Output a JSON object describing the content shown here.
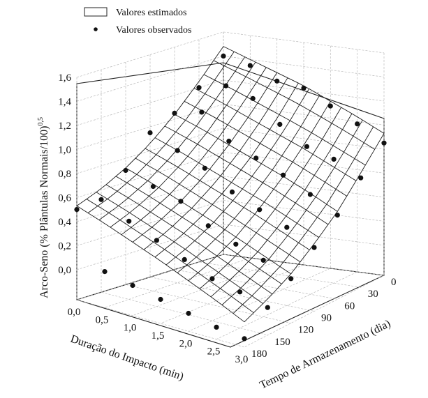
{
  "chart_data": {
    "type": "surface3d",
    "legend": {
      "placement": "top-left",
      "entries": [
        {
          "name": "Valores estimados",
          "marker": "surface"
        },
        {
          "name": "Valores observados",
          "marker": "dot"
        }
      ]
    },
    "zlabel": "Arco-Seno (% Plântulas Normais/100)0,5",
    "xlabel": "Duração do Impacto (min)",
    "ylabel": "Tempo de Armazenamento (dia)",
    "z_ticks": [
      "0,0",
      "0,2",
      "0,4",
      "0,6",
      "0,8",
      "1,0",
      "1,2",
      "1,4",
      "1,6"
    ],
    "x_ticks": [
      "0,0",
      "0,5",
      "1,0",
      "1,5",
      "2,0",
      "2,5",
      "3,0"
    ],
    "y_ticks": [
      "0",
      "30",
      "60",
      "90",
      "120",
      "150",
      "180"
    ],
    "zlim": [
      -0.25,
      1.6
    ],
    "xlim": [
      0,
      3
    ],
    "ylim": [
      0,
      180
    ],
    "surface": {
      "x": [
        0.0,
        0.5,
        1.0,
        1.5,
        2.0,
        2.5,
        3.0
      ],
      "y": [
        0,
        30,
        60,
        90,
        120,
        150,
        180
      ],
      "z_rows_by_y": [
        [
          1.48,
          1.4,
          1.32,
          1.24,
          1.14,
          1.04,
          0.93
        ],
        [
          1.25,
          1.17,
          1.08,
          0.99,
          0.9,
          0.8,
          0.7
        ],
        [
          1.04,
          0.96,
          0.87,
          0.78,
          0.69,
          0.59,
          0.48
        ],
        [
          0.86,
          0.78,
          0.69,
          0.6,
          0.51,
          0.41,
          0.31
        ],
        [
          0.72,
          0.64,
          0.55,
          0.46,
          0.36,
          0.26,
          0.16
        ],
        [
          0.61,
          0.53,
          0.44,
          0.35,
          0.25,
          0.15,
          0.05
        ],
        [
          0.53,
          0.45,
          0.36,
          0.27,
          0.17,
          0.07,
          -0.04
        ]
      ]
    },
    "observed": [
      {
        "x": 0.0,
        "y": 0,
        "z": 1.4
      },
      {
        "x": 0.0,
        "y": 30,
        "z": 1.2
      },
      {
        "x": 0.0,
        "y": 60,
        "z": 1.05
      },
      {
        "x": 0.0,
        "y": 90,
        "z": 0.95
      },
      {
        "x": 0.0,
        "y": 120,
        "z": 0.7
      },
      {
        "x": 0.0,
        "y": 150,
        "z": 0.52
      },
      {
        "x": 0.0,
        "y": 180,
        "z": 0.5
      },
      {
        "x": 0.5,
        "y": 0,
        "z": 1.35
      },
      {
        "x": 0.5,
        "y": 30,
        "z": 1.25
      },
      {
        "x": 0.5,
        "y": 60,
        "z": 1.1
      },
      {
        "x": 0.5,
        "y": 90,
        "z": 0.85
      },
      {
        "x": 0.5,
        "y": 120,
        "z": 0.62
      },
      {
        "x": 0.5,
        "y": 150,
        "z": 0.4
      },
      {
        "x": 0.5,
        "y": 180,
        "z": 0.05
      },
      {
        "x": 1.0,
        "y": 0,
        "z": 1.25
      },
      {
        "x": 1.0,
        "y": 30,
        "z": 1.18
      },
      {
        "x": 1.0,
        "y": 60,
        "z": 0.9
      },
      {
        "x": 1.0,
        "y": 90,
        "z": 0.75
      },
      {
        "x": 1.0,
        "y": 120,
        "z": 0.55
      },
      {
        "x": 1.0,
        "y": 150,
        "z": 0.3
      },
      {
        "x": 1.0,
        "y": 180,
        "z": 0.0
      },
      {
        "x": 1.5,
        "y": 0,
        "z": 1.22
      },
      {
        "x": 1.5,
        "y": 30,
        "z": 1.0
      },
      {
        "x": 1.5,
        "y": 60,
        "z": 0.8
      },
      {
        "x": 1.5,
        "y": 90,
        "z": 0.6
      },
      {
        "x": 1.5,
        "y": 120,
        "z": 0.4
      },
      {
        "x": 1.5,
        "y": 150,
        "z": 0.2
      },
      {
        "x": 1.5,
        "y": 180,
        "z": -0.05
      },
      {
        "x": 2.0,
        "y": 0,
        "z": 1.1
      },
      {
        "x": 2.0,
        "y": 30,
        "z": 0.85
      },
      {
        "x": 2.0,
        "y": 60,
        "z": 0.7
      },
      {
        "x": 2.0,
        "y": 90,
        "z": 0.5
      },
      {
        "x": 2.0,
        "y": 120,
        "z": 0.3
      },
      {
        "x": 2.0,
        "y": 150,
        "z": 0.1
      },
      {
        "x": 2.0,
        "y": 180,
        "z": -0.1
      },
      {
        "x": 2.5,
        "y": 0,
        "z": 0.98
      },
      {
        "x": 2.5,
        "y": 30,
        "z": 0.78
      },
      {
        "x": 2.5,
        "y": 60,
        "z": 0.58
      },
      {
        "x": 2.5,
        "y": 90,
        "z": 0.4
      },
      {
        "x": 2.5,
        "y": 120,
        "z": 0.22
      },
      {
        "x": 2.5,
        "y": 150,
        "z": 0.05
      },
      {
        "x": 2.5,
        "y": 180,
        "z": -0.15
      },
      {
        "x": 3.0,
        "y": 0,
        "z": 0.85
      },
      {
        "x": 3.0,
        "y": 30,
        "z": 0.66
      },
      {
        "x": 3.0,
        "y": 60,
        "z": 0.45
      },
      {
        "x": 3.0,
        "y": 90,
        "z": 0.28
      },
      {
        "x": 3.0,
        "y": 120,
        "z": 0.12
      },
      {
        "x": 3.0,
        "y": 150,
        "z": -0.02
      },
      {
        "x": 3.0,
        "y": 180,
        "z": -0.18
      }
    ],
    "grid": true
  }
}
